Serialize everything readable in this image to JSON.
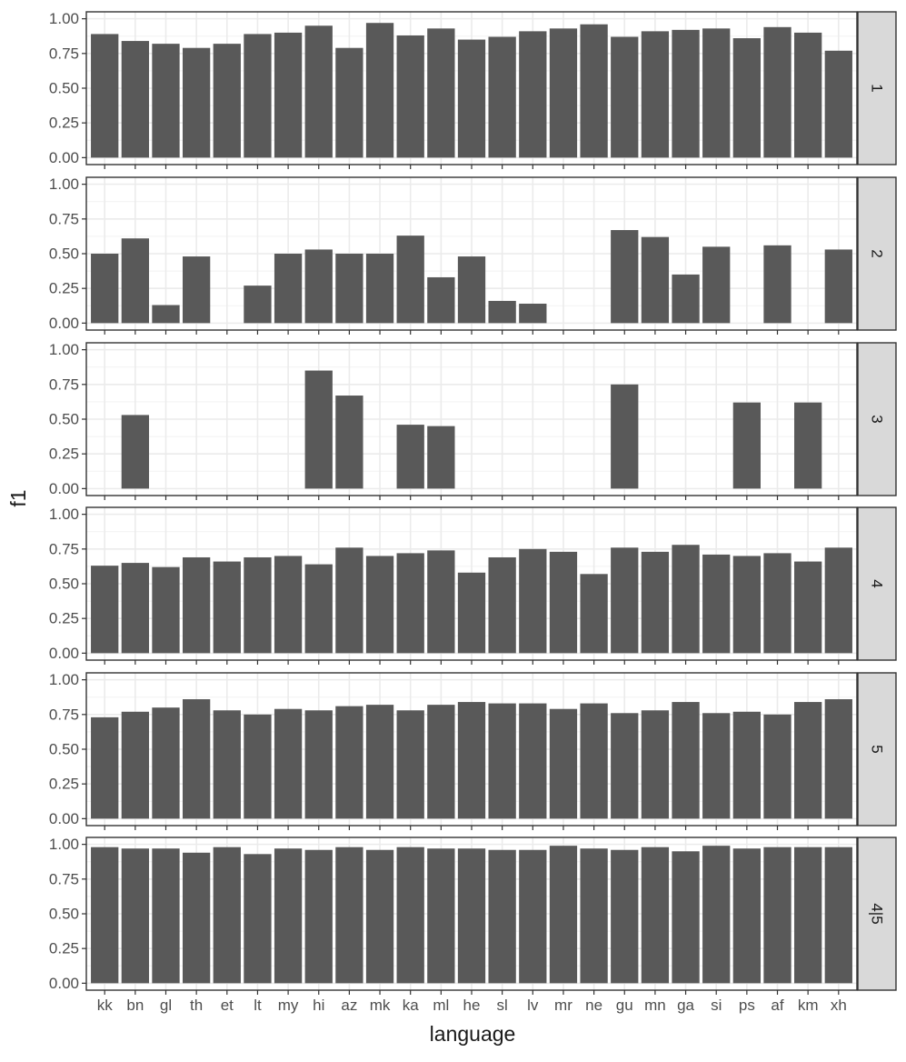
{
  "chart_data": {
    "type": "bar",
    "facet_strip_position": "right",
    "xlabel": "language",
    "ylabel": "f1",
    "ylim": [
      0,
      1
    ],
    "yticks": [
      0,
      0.25,
      0.5,
      0.75,
      1
    ],
    "ytick_labels": [
      "0.00",
      "0.25",
      "0.50",
      "0.75",
      "1.00"
    ],
    "grid": true,
    "bar_color": "#595959",
    "categories": [
      "kk",
      "bn",
      "gl",
      "th",
      "et",
      "lt",
      "my",
      "hi",
      "az",
      "mk",
      "ka",
      "ml",
      "he",
      "sl",
      "lv",
      "mr",
      "ne",
      "gu",
      "mn",
      "ga",
      "si",
      "ps",
      "af",
      "km",
      "xh"
    ],
    "panels": [
      {
        "strip": "1",
        "values": [
          0.89,
          0.84,
          0.82,
          0.79,
          0.82,
          0.89,
          0.9,
          0.95,
          0.79,
          0.97,
          0.88,
          0.93,
          0.85,
          0.87,
          0.91,
          0.93,
          0.96,
          0.87,
          0.91,
          0.92,
          0.93,
          0.86,
          0.94,
          0.9,
          0.77
        ]
      },
      {
        "strip": "2",
        "values": [
          0.5,
          0.61,
          0.13,
          0.48,
          null,
          0.27,
          0.5,
          0.53,
          0.5,
          0.5,
          0.63,
          0.33,
          0.48,
          0.16,
          0.14,
          null,
          null,
          0.67,
          0.62,
          0.35,
          0.55,
          null,
          0.56,
          null,
          0.53
        ]
      },
      {
        "strip": "3",
        "values": [
          null,
          0.53,
          null,
          null,
          null,
          null,
          null,
          0.85,
          0.67,
          null,
          0.46,
          0.45,
          null,
          null,
          null,
          null,
          null,
          0.75,
          null,
          null,
          null,
          0.62,
          null,
          0.62,
          null
        ]
      },
      {
        "strip": "4",
        "values": [
          0.63,
          0.65,
          0.62,
          0.69,
          0.66,
          0.69,
          0.7,
          0.64,
          0.76,
          0.7,
          0.72,
          0.74,
          0.58,
          0.69,
          0.75,
          0.73,
          0.57,
          0.76,
          0.73,
          0.78,
          0.71,
          0.7,
          0.72,
          0.66,
          0.76
        ]
      },
      {
        "strip": "5",
        "values": [
          0.73,
          0.77,
          0.8,
          0.86,
          0.78,
          0.75,
          0.79,
          0.78,
          0.81,
          0.82,
          0.78,
          0.82,
          0.84,
          0.83,
          0.83,
          0.79,
          0.83,
          0.76,
          0.78,
          0.84,
          0.76,
          0.77,
          0.75,
          0.84,
          0.86
        ]
      },
      {
        "strip": "4|5",
        "values": [
          0.98,
          0.97,
          0.97,
          0.94,
          0.98,
          0.93,
          0.97,
          0.96,
          0.98,
          0.96,
          0.98,
          0.97,
          0.97,
          0.96,
          0.96,
          0.99,
          0.97,
          0.96,
          0.98,
          0.95,
          0.99,
          0.97,
          0.98,
          0.98,
          0.98
        ]
      }
    ]
  }
}
